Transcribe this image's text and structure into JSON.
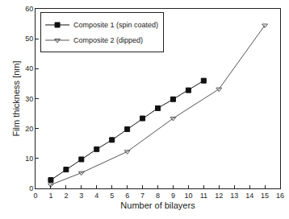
{
  "chart_data": {
    "type": "line",
    "x_label": "Number of bilayers",
    "y_label": "Film thickness [nm]",
    "xlim": [
      0,
      16
    ],
    "xticks": [
      0,
      1,
      2,
      3,
      4,
      5,
      6,
      7,
      8,
      9,
      10,
      11,
      12,
      13,
      14,
      15,
      16
    ],
    "ylim": [
      0,
      60
    ],
    "yticks": [
      0,
      10,
      20,
      30,
      40,
      50,
      60
    ],
    "grid": false,
    "legend": "upper left",
    "series": [
      {
        "name": "Composite 1 (spin coated)",
        "color": "#111111",
        "marker": "square",
        "line_style": "solid",
        "x": [
          1,
          2,
          3,
          4,
          5,
          6,
          7,
          8,
          9,
          10,
          11
        ],
        "values": [
          2.8,
          6.3,
          9.7,
          13.1,
          16.2,
          19.8,
          23.4,
          26.8,
          29.8,
          32.8,
          36.0
        ]
      },
      {
        "name": "Composite 2 (dipped)",
        "color": "#555555",
        "marker": "triangle-down-open",
        "line_style": "solid",
        "x": [
          1,
          3,
          6,
          9,
          12,
          15
        ],
        "values": [
          1.2,
          5.2,
          12.3,
          23.4,
          33.2,
          54.5
        ]
      }
    ]
  }
}
